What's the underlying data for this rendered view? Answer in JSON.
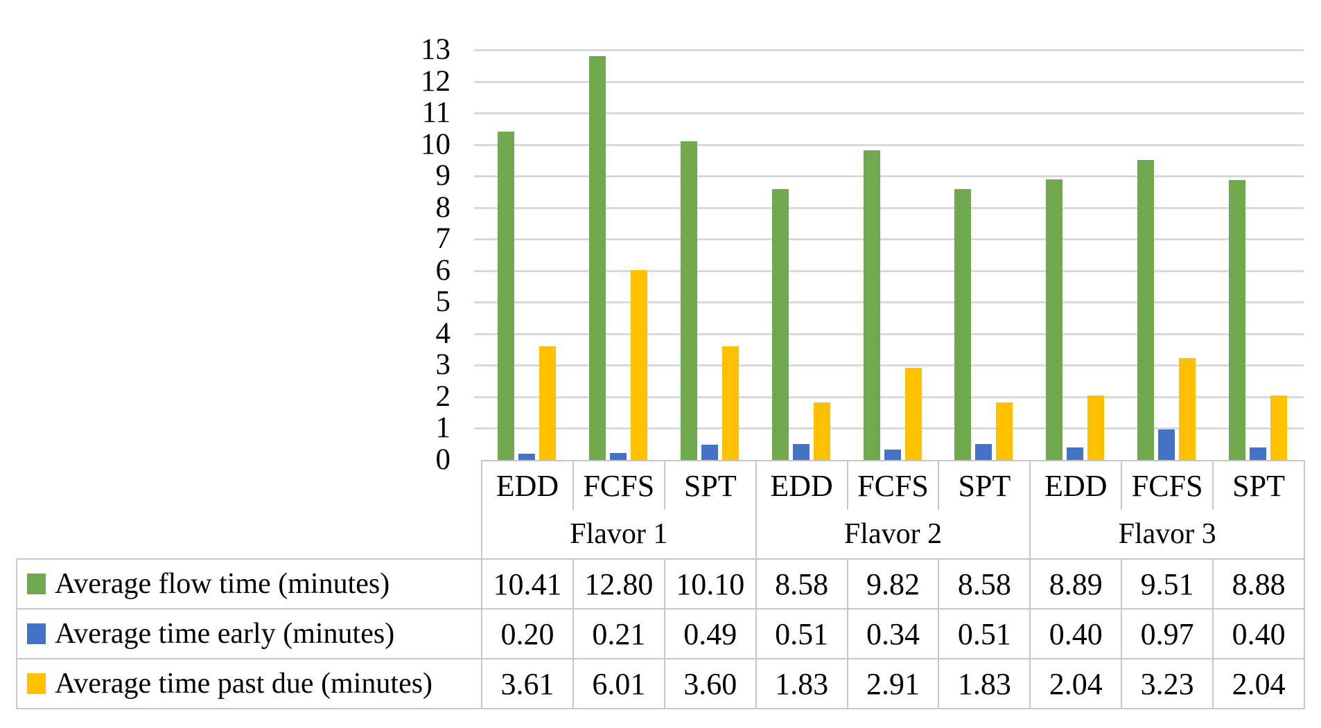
{
  "chart_data": {
    "type": "bar",
    "title": "",
    "xlabel": "",
    "ylabel": "",
    "ylim": [
      0,
      13
    ],
    "ytick_step": 1,
    "grid": true,
    "legend_position": "data-table-left-column",
    "categories": [
      "EDD",
      "FCFS",
      "SPT",
      "EDD",
      "FCFS",
      "SPT",
      "EDD",
      "FCFS",
      "SPT"
    ],
    "category_groups": [
      {
        "label": "Flavor 1",
        "span": 3
      },
      {
        "label": "Flavor 2",
        "span": 3
      },
      {
        "label": "Flavor 3",
        "span": 3
      }
    ],
    "series": [
      {
        "name": "Average flow time (minutes)",
        "color": "#6fa84e",
        "values": [
          10.41,
          12.8,
          10.1,
          8.58,
          9.82,
          8.58,
          8.89,
          9.51,
          8.88
        ]
      },
      {
        "name": "Average time early (minutes)",
        "color": "#4472c4",
        "values": [
          0.2,
          0.21,
          0.49,
          0.51,
          0.34,
          0.51,
          0.4,
          0.97,
          0.4
        ]
      },
      {
        "name": "Average time past due (minutes)",
        "color": "#ffc000",
        "values": [
          3.61,
          6.01,
          3.6,
          1.83,
          2.91,
          1.83,
          2.04,
          3.23,
          2.04
        ]
      }
    ]
  },
  "table": {
    "col_headers": [
      "EDD",
      "FCFS",
      "SPT",
      "EDD",
      "FCFS",
      "SPT",
      "EDD",
      "FCFS",
      "SPT"
    ],
    "group_headers": [
      "Flavor 1",
      "Flavor 2",
      "Flavor 3"
    ],
    "rows": [
      {
        "label": "Average flow time (minutes)",
        "key_color": "#6fa84e",
        "values": [
          "10.41",
          "12.80",
          "10.10",
          "8.58",
          "9.82",
          "8.58",
          "8.89",
          "9.51",
          "8.88"
        ]
      },
      {
        "label": "Average time early (minutes)",
        "key_color": "#4472c4",
        "values": [
          "0.20",
          "0.21",
          "0.49",
          "0.51",
          "0.34",
          "0.51",
          "0.40",
          "0.97",
          "0.40"
        ]
      },
      {
        "label": "Average time past due (minutes)",
        "key_color": "#ffc000",
        "values": [
          "3.61",
          "6.01",
          "3.60",
          "1.83",
          "2.91",
          "1.83",
          "2.04",
          "3.23",
          "2.04"
        ]
      }
    ]
  }
}
